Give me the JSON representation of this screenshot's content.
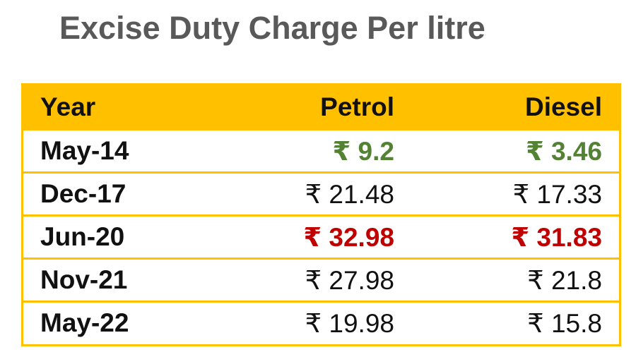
{
  "title": "Excise Duty Charge Per litre",
  "table": {
    "header": [
      "Year",
      "Petrol",
      "Diesel"
    ],
    "rows": [
      [
        "May-14",
        "₹ 9.2",
        "₹ 3.46"
      ],
      [
        "Dec-17",
        "₹ 21.48",
        "₹ 17.33"
      ],
      [
        "Jun-20",
        "₹ 32.98",
        "₹ 31.83"
      ],
      [
        "Nov-21",
        "₹ 27.98",
        "₹ 21.8"
      ],
      [
        "May-22",
        "₹ 19.98",
        "₹ 15.8"
      ]
    ]
  }
}
